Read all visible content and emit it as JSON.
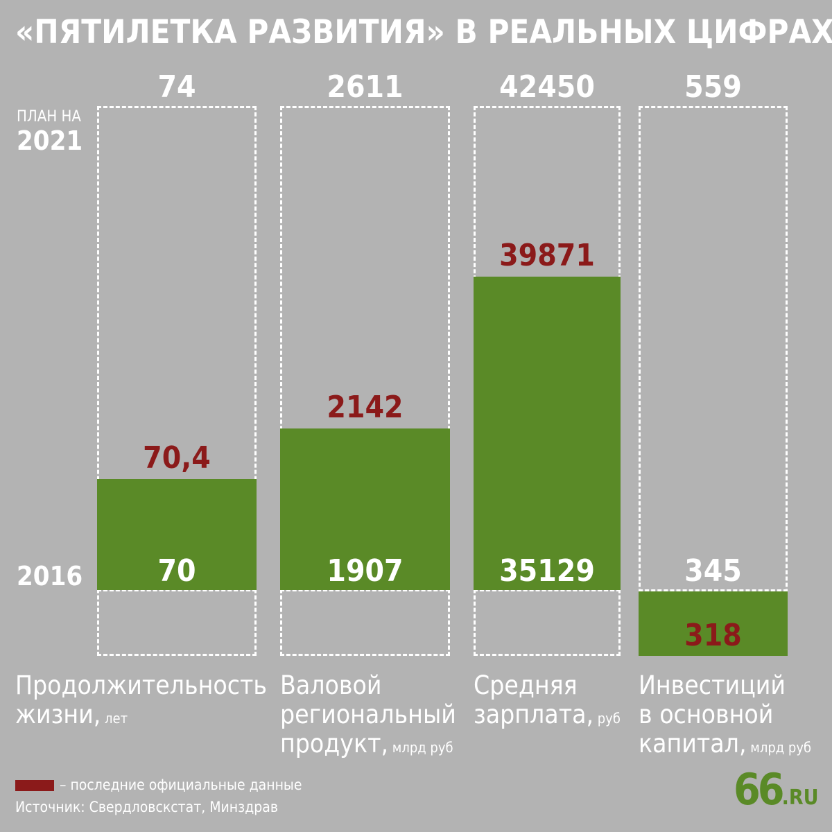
{
  "title": "«ПЯТИЛЕТКА РАЗВИТИЯ» В РЕАЛЬНЫХ ЦИФРАХ",
  "plan_label_small": "ПЛАН НА",
  "plan_label_year": "2021",
  "base_label": "2016",
  "legend": "– последние официальные данные",
  "source": "Источник: Свердловскстат, Минздрав",
  "logo": {
    "number": "66",
    "domain": ".RU"
  },
  "colors": {
    "background": "#b3b3b3",
    "bar": "#5a8a27",
    "latest": "#8b1a1a",
    "text": "#ffffff"
  },
  "chart_data": {
    "type": "bar",
    "categories": [
      "Продолжительность жизни",
      "Валовой региональный продукт",
      "Средняя зарплата",
      "Инвестиций в основной капитал"
    ],
    "series": [
      {
        "name": "2016",
        "values": [
          70,
          1907,
          35129,
          345
        ]
      },
      {
        "name": "последние официальные данные",
        "values": [
          70.4,
          2142,
          39871,
          318
        ]
      },
      {
        "name": "ПЛАН НА 2021",
        "values": [
          74,
          2611,
          42450,
          559
        ]
      }
    ],
    "columns": [
      {
        "label_lines": [
          "Продолжительность",
          "жизни,"
        ],
        "unit": "лет",
        "base": "70",
        "current": "70,4",
        "target": "74"
      },
      {
        "label_lines": [
          "Валовой",
          "региональный",
          "продукт,"
        ],
        "unit": "млрд руб",
        "base": "1907",
        "current": "2142",
        "target": "2611"
      },
      {
        "label_lines": [
          "Средняя",
          "зарплата,"
        ],
        "unit": "руб",
        "base": "35129",
        "current": "39871",
        "target": "42450"
      },
      {
        "label_lines": [
          "Инвестиций",
          "в основной",
          "капитал,"
        ],
        "unit": "млрд руб",
        "base": "345",
        "current": "318",
        "target": "559"
      }
    ],
    "baseline_value_label": "2016",
    "target_value_label": "ПЛАН НА 2021"
  }
}
